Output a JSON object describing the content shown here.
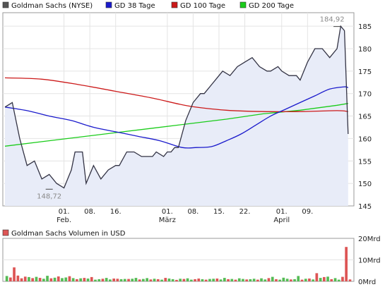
{
  "chart_data": [
    {
      "type": "line",
      "legend": [
        {
          "name": "Goldman Sachs (NYSE)",
          "color": "#555555"
        },
        {
          "name": "GD 38 Tage",
          "color": "#1a1acc"
        },
        {
          "name": "GD 100 Tage",
          "color": "#cc1a1a"
        },
        {
          "name": "GD 200 Tage",
          "color": "#1acc1a"
        }
      ],
      "ylim": [
        145,
        188
      ],
      "yticks": [
        145,
        150,
        155,
        160,
        165,
        170,
        175,
        180,
        185
      ],
      "x_tick_labels": [
        {
          "day": 16,
          "top": "01.",
          "bottom": "Feb."
        },
        {
          "day": 23,
          "top": "08.",
          "bottom": ""
        },
        {
          "day": 30,
          "top": "16.",
          "bottom": ""
        },
        {
          "day": 44,
          "top": "01.",
          "bottom": "März"
        },
        {
          "day": 51,
          "top": "08.",
          "bottom": ""
        },
        {
          "day": 58,
          "top": "15.",
          "bottom": ""
        },
        {
          "day": 65,
          "top": "22.",
          "bottom": ""
        },
        {
          "day": 75,
          "top": "01.",
          "bottom": "April"
        },
        {
          "day": 82,
          "top": "09.",
          "bottom": ""
        }
      ],
      "xrange": [
        0,
        94
      ],
      "annotations": [
        {
          "text": "148,72",
          "day": 12,
          "value": 148.72
        },
        {
          "text": "184,92",
          "day": 90,
          "value": 184.92
        }
      ],
      "series": [
        {
          "name": "Goldman Sachs (NYSE)",
          "color": "#333344",
          "fill": "#e8ecf8",
          "x": [
            0,
            2,
            4,
            6,
            8,
            10,
            12,
            14,
            16,
            18,
            19,
            21,
            22,
            24,
            26,
            28,
            30,
            31,
            33,
            35,
            37,
            38,
            40,
            41,
            43,
            44,
            45,
            46,
            47,
            49,
            51,
            53,
            54,
            56,
            58,
            59,
            61,
            63,
            65,
            67,
            69,
            71,
            72,
            74,
            75,
            77,
            79,
            80,
            82,
            84,
            86,
            88,
            90,
            91,
            92,
            93
          ],
          "values": [
            167,
            168,
            160,
            154,
            155,
            151,
            152,
            150,
            149,
            153,
            157,
            157,
            150,
            154,
            151,
            153,
            154,
            154,
            157,
            157,
            156,
            156,
            156,
            157,
            156,
            157,
            157,
            158,
            158,
            164,
            168,
            170,
            170,
            172,
            174,
            175,
            174,
            176,
            177,
            178,
            176,
            175,
            175,
            176,
            175,
            174,
            174,
            173,
            177,
            180,
            180,
            178,
            180,
            185,
            184,
            161
          ]
        },
        {
          "name": "GD 38 Tage",
          "color": "#1a1acc",
          "x": [
            0,
            6,
            12,
            18,
            24,
            30,
            36,
            42,
            48,
            52,
            56,
            60,
            64,
            68,
            72,
            76,
            80,
            84,
            88,
            92,
            93
          ],
          "values": [
            167,
            166.2,
            165,
            164,
            162.5,
            161.5,
            160.5,
            159.5,
            158,
            158,
            158.2,
            159.5,
            161,
            163,
            165,
            166.5,
            168,
            169.5,
            171,
            171.5,
            171.3
          ],
          "smooth": true
        },
        {
          "name": "GD 100 Tage",
          "color": "#cc1a1a",
          "x": [
            0,
            10,
            20,
            30,
            40,
            50,
            60,
            70,
            80,
            90,
            93
          ],
          "values": [
            173.5,
            173.2,
            172,
            170.5,
            169,
            167.2,
            166.3,
            166,
            166,
            166.2,
            166
          ],
          "smooth": true
        },
        {
          "name": "GD 200 Tage",
          "color": "#1acc1a",
          "x": [
            0,
            10,
            20,
            30,
            40,
            50,
            60,
            70,
            80,
            90,
            93
          ],
          "values": [
            158.3,
            159.3,
            160.3,
            161.3,
            162.3,
            163.3,
            164.3,
            165.5,
            166.3,
            167.4,
            167.8
          ]
        }
      ]
    },
    {
      "type": "bar",
      "title": "Goldman Sachs Volumen in USD",
      "ylabel_ticks": [
        "0Mrd",
        "10Mrd",
        "20Mrd"
      ],
      "ylim": [
        0,
        20
      ],
      "colors": {
        "up": "#55bb55",
        "down": "#dd5555"
      },
      "values": [
        2.5,
        1.8,
        6.5,
        2.7,
        1.4,
        2.2,
        2.0,
        1.5,
        2.1,
        1.6,
        1.2,
        2.6,
        1.4,
        1.7,
        2.3,
        1.5,
        1.8,
        2.4,
        1.5,
        1.0,
        1.4,
        1.6,
        1.3,
        2.0,
        0.8,
        1.0,
        1.2,
        1.6,
        0.9,
        1.3,
        1.2,
        1.0,
        1.1,
        1.1,
        1.2,
        1.6,
        0.9,
        1.1,
        1.5,
        0.9,
        1.2,
        1.0,
        0.8,
        1.6,
        1.3,
        1.0,
        0.7,
        1.2,
        1.1,
        1.4,
        0.8,
        1.0,
        1.3,
        1.0,
        0.8,
        1.1,
        1.2,
        1.3,
        0.9,
        1.6,
        1.0,
        1.1,
        0.8,
        1.4,
        1.1,
        0.9,
        1.0,
        1.2,
        0.8,
        1.4,
        0.9,
        1.5,
        2.1,
        1.0,
        0.8,
        1.7,
        1.2,
        0.9,
        1.0,
        2.5,
        0.8,
        1.2,
        1.3,
        0.9,
        3.8,
        1.6,
        2.0,
        2.2,
        1.0,
        1.5,
        0.8,
        2.1,
        16.0,
        0.9
      ],
      "up": [
        1,
        0,
        0,
        0,
        0,
        0,
        1,
        0,
        1,
        0,
        1,
        1,
        0,
        1,
        0,
        1,
        1,
        0,
        1,
        0,
        1,
        0,
        1,
        0,
        1,
        1,
        0,
        1,
        1,
        0,
        0,
        1,
        1,
        0,
        1,
        1,
        0,
        1,
        1,
        0,
        1,
        0,
        1,
        0,
        1,
        1,
        0,
        1,
        0,
        1,
        1,
        0,
        0,
        1,
        0,
        1,
        1,
        0,
        1,
        1,
        0,
        1,
        0,
        1,
        1,
        0,
        1,
        1,
        0,
        1,
        1,
        0,
        1,
        0,
        1,
        1,
        1,
        0,
        1,
        1,
        0,
        1,
        0,
        1,
        0,
        1,
        0,
        1,
        0,
        1,
        1,
        0,
        0,
        0
      ]
    }
  ]
}
